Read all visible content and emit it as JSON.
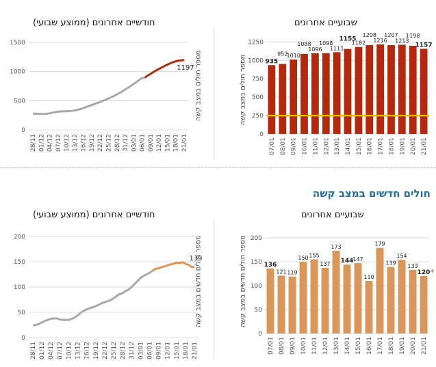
{
  "section_title": "חולים חדשים במצב קשה",
  "colors": {
    "gray_line": "#a8a8a8",
    "red": "#b22a10",
    "orange": "#d9955a",
    "threshold": "#f2b705",
    "grid": "#d9d9d9",
    "section_title": "#2a6f97",
    "asterisk": "#e03030"
  },
  "chart_data": [
    {
      "id": "top-left",
      "type": "line",
      "title": "חודשיים אחרונים (ממוצע שבועי)",
      "ylabel": "מספר חולים במצב קשה",
      "ylim": [
        0,
        1500
      ],
      "yticks": [
        "0",
        "500",
        "1000",
        "1500"
      ],
      "yticks_values": [
        0,
        500,
        1000,
        1500
      ],
      "tick_labels": [
        "28/11",
        "01/12",
        "04/12",
        "07/12",
        "10/12",
        "13/12",
        "16/12",
        "19/12",
        "22/12",
        "25/12",
        "28/12",
        "31/12",
        "03/01",
        "06/01",
        "09/01",
        "12/01",
        "15/01",
        "18/01",
        "21/01"
      ],
      "x_count": 55,
      "highlight_from": 40,
      "end_label": "1197",
      "values": [
        280,
        276,
        273,
        272,
        272,
        275,
        283,
        295,
        305,
        312,
        316,
        318,
        320,
        322,
        326,
        333,
        343,
        356,
        372,
        390,
        408,
        425,
        443,
        460,
        478,
        497,
        517,
        538,
        560,
        583,
        608,
        635,
        663,
        692,
        722,
        754,
        787,
        822,
        857,
        890,
        895,
        930,
        960,
        990,
        1020,
        1045,
        1070,
        1095,
        1118,
        1140,
        1160,
        1175,
        1185,
        1192,
        1197
      ]
    },
    {
      "id": "top-right",
      "type": "bar",
      "title": "שבועיים אחרונים",
      "ylabel": "מספר חולים במצב קשה",
      "ylim": [
        0,
        1300
      ],
      "yticks": [
        "0",
        "250",
        "500",
        "750",
        "1000",
        "1250"
      ],
      "yticks_values": [
        0,
        250,
        500,
        750,
        1000,
        1250
      ],
      "threshold": 250,
      "categories": [
        "07/01",
        "08/01",
        "09/01",
        "10/01",
        "11/01",
        "12/01",
        "13/01",
        "14/01",
        "15/01",
        "16/01",
        "17/01",
        "18/01",
        "19/01",
        "20/01",
        "21/01"
      ],
      "values": [
        935,
        952,
        1010,
        1088,
        1096,
        1098,
        1111,
        1155,
        1182,
        1208,
        1216,
        1207,
        1213,
        1198,
        1157
      ],
      "labels": [
        "935",
        "952",
        "1010",
        "1088",
        "1096",
        "1098",
        "1111",
        "1155",
        "1182",
        "1208",
        "1216",
        "1207",
        "1213",
        "1198",
        "1157"
      ],
      "bold": [
        0,
        7,
        14
      ]
    },
    {
      "id": "bottom-left",
      "type": "line",
      "title": "חודשיים אחרונים (ממוצע שבועי)",
      "ylabel": "מספר חולים חדשים במצב קשה",
      "ylim": [
        0,
        200
      ],
      "yticks": [
        "0",
        "50",
        "100",
        "150",
        "200"
      ],
      "yticks_values": [
        0,
        50,
        100,
        150,
        200
      ],
      "tick_labels": [
        "28/11",
        "01/12",
        "04/12",
        "07/12",
        "10/12",
        "13/12",
        "16/12",
        "19/12",
        "22/12",
        "25/12",
        "28/12",
        "31/12",
        "03/01",
        "06/01",
        "09/01",
        "12/01",
        "15/01",
        "18/01",
        "21/01"
      ],
      "x_count": 55,
      "highlight_from": 40,
      "end_label": "139",
      "values": [
        24,
        25,
        27,
        30,
        33,
        35,
        37,
        38,
        38,
        36,
        35,
        35,
        35,
        37,
        40,
        44,
        49,
        53,
        56,
        58,
        60,
        62,
        65,
        68,
        70,
        72,
        74,
        78,
        82,
        86,
        88,
        92,
        95,
        100,
        106,
        112,
        118,
        122,
        125,
        128,
        132,
        136,
        137,
        139,
        141,
        143,
        145,
        146,
        148,
        147,
        149,
        146,
        144,
        140,
        139
      ]
    },
    {
      "id": "bottom-right",
      "type": "bar",
      "title": "שבועיים אחרונים",
      "ylabel": "מספר חולים חדשים במצב קשה",
      "ylim": [
        0,
        200
      ],
      "yticks": [
        "0",
        "50",
        "100",
        "150",
        "200"
      ],
      "yticks_values": [
        0,
        50,
        100,
        150,
        200
      ],
      "categories": [
        "07/01",
        "08/01",
        "09/01",
        "10/01",
        "11/01",
        "12/01",
        "13/01",
        "14/01",
        "15/01",
        "16/01",
        "17/01",
        "18/01",
        "19/01",
        "20/01",
        "21/01"
      ],
      "values": [
        136,
        121,
        119,
        150,
        155,
        137,
        173,
        144,
        147,
        110,
        179,
        139,
        154,
        133,
        120
      ],
      "labels": [
        "136",
        "121",
        "119",
        "150",
        "155",
        "137",
        "173",
        "144",
        "147",
        "110",
        "179",
        "139",
        "154",
        "133",
        "120"
      ],
      "bold": [
        0,
        7,
        14
      ],
      "asterisk": "*"
    }
  ]
}
